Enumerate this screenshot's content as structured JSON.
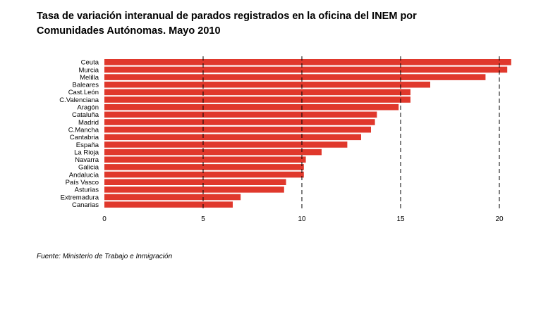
{
  "title": {
    "line1": "Tasa de variación interanual de parados registrados en la oficina del INEM por",
    "line2": "Comunidades Autónomas. Mayo 2010"
  },
  "source": "Fuente: Ministerio de Trabajo e Inmigración",
  "colors": {
    "bar": "#e0382c",
    "grid": "#000000"
  },
  "chart_data": {
    "type": "bar",
    "orientation": "horizontal",
    "categories": [
      "Ceuta",
      "Murcia",
      "Melilla",
      "Baleares",
      "Cast.León",
      "C.Valenciana",
      "Aragón",
      "Cataluña",
      "Madrid",
      "C.Mancha",
      "Cantabria",
      "España",
      "La Rioja",
      "Navarra",
      "Galicia",
      "Andalucía",
      "País Vasco",
      "Asturias",
      "Extremadura",
      "Canarias"
    ],
    "values": [
      20.6,
      20.4,
      19.3,
      16.5,
      15.5,
      15.5,
      14.9,
      13.8,
      13.7,
      13.5,
      13.0,
      12.3,
      11.0,
      10.2,
      10.1,
      10.1,
      9.2,
      9.1,
      6.9,
      6.5
    ],
    "xlim": [
      0,
      20.75
    ],
    "xticks": [
      0,
      5,
      10,
      15,
      20
    ],
    "grid": "vertical dashed"
  }
}
